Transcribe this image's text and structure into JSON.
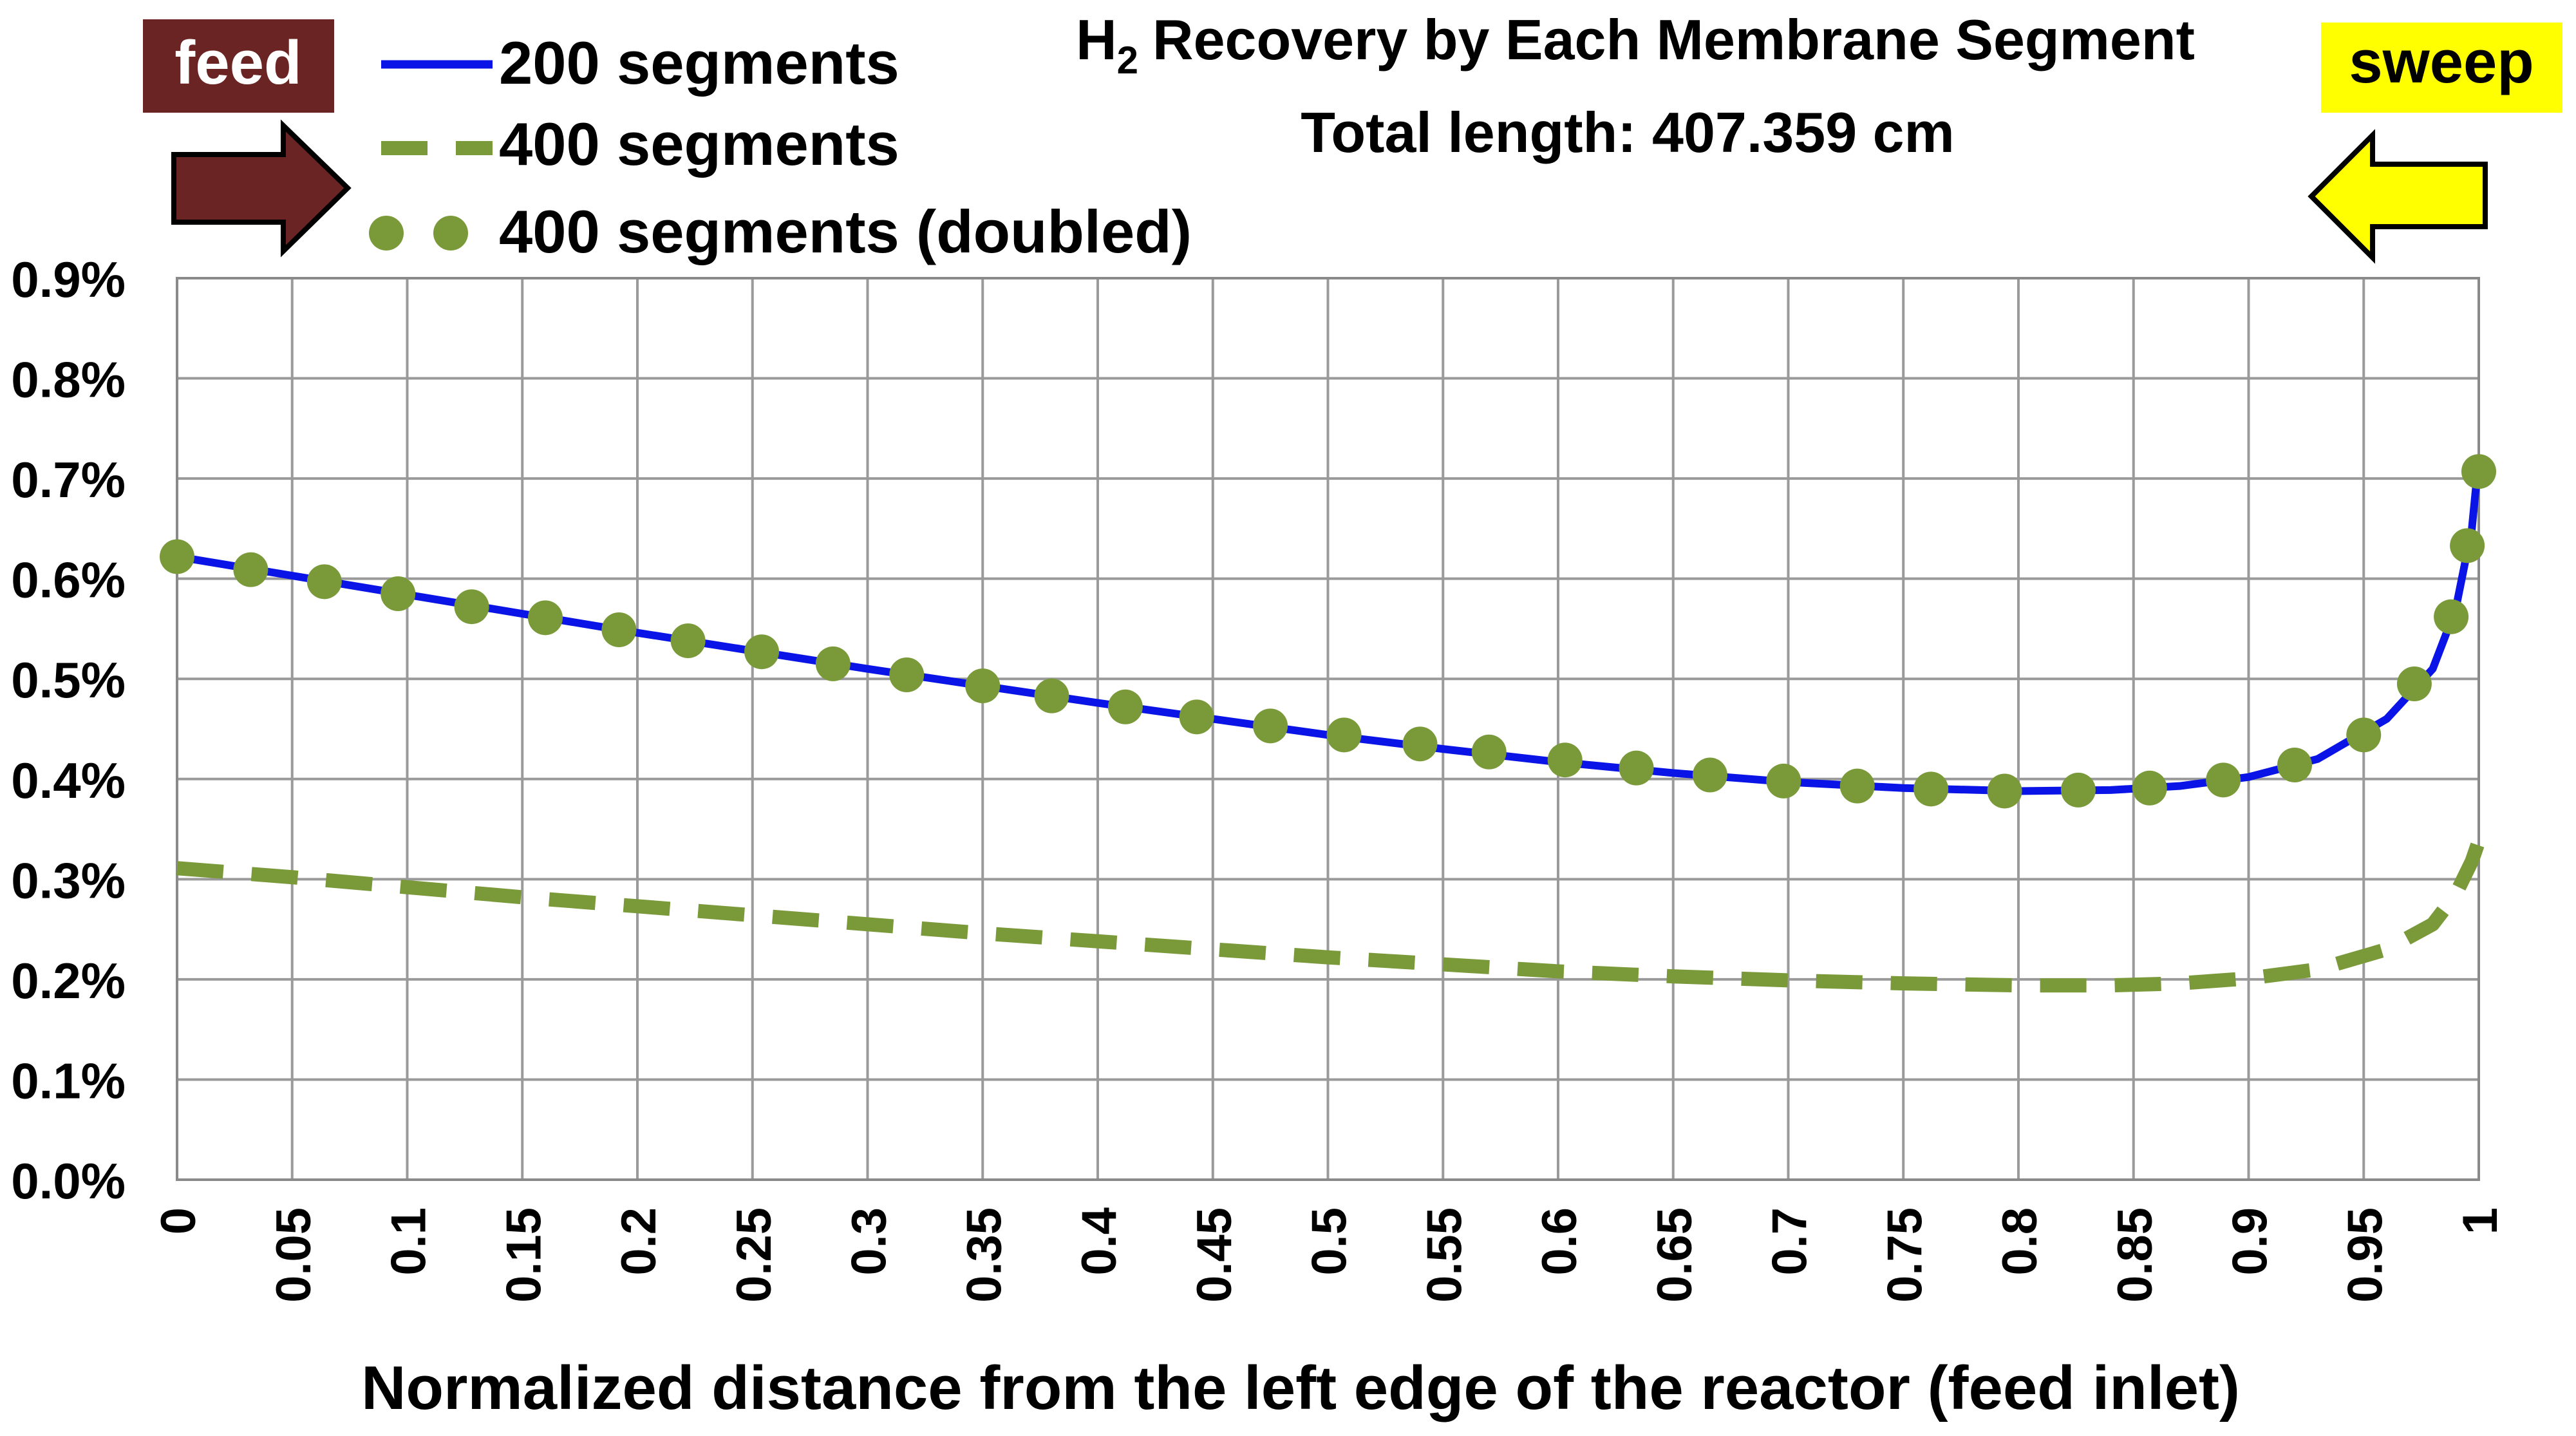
{
  "chart_data": {
    "type": "line",
    "title": "Recovery by Each Membrane Segment",
    "title_prefix": "H",
    "title_subscript": "2",
    "subtitle": "Total length: 407.359 cm",
    "xlabel": "Normalized distance from the left edge of the reactor (feed inlet)",
    "ylabel": "",
    "xlim": [
      0,
      1
    ],
    "ylim": [
      0,
      0.009
    ],
    "x_ticks": [
      "0",
      "0.05",
      "0.1",
      "0.15",
      "0.2",
      "0.25",
      "0.3",
      "0.35",
      "0.4",
      "0.45",
      "0.5",
      "0.55",
      "0.6",
      "0.65",
      "0.7",
      "0.75",
      "0.8",
      "0.85",
      "0.9",
      "0.95",
      "1"
    ],
    "y_ticks": [
      "0.0%",
      "0.1%",
      "0.2%",
      "0.3%",
      "0.4%",
      "0.5%",
      "0.6%",
      "0.7%",
      "0.8%",
      "0.9%"
    ],
    "grid": true,
    "legend_position": "top-left",
    "series": [
      {
        "name": "200 segments",
        "style": "solid",
        "color": "#0a14e6",
        "x": [
          0,
          0.05,
          0.1,
          0.15,
          0.2,
          0.25,
          0.3,
          0.35,
          0.4,
          0.45,
          0.5,
          0.55,
          0.6,
          0.65,
          0.7,
          0.75,
          0.8,
          0.84,
          0.87,
          0.9,
          0.93,
          0.96,
          0.98,
          0.99,
          0.997,
          1.0
        ],
        "y": [
          0.00622,
          0.00603,
          0.00584,
          0.00565,
          0.00546,
          0.00528,
          0.0051,
          0.00493,
          0.00476,
          0.0046,
          0.00444,
          0.0043,
          0.00417,
          0.00406,
          0.00397,
          0.00391,
          0.00388,
          0.00389,
          0.00393,
          0.00402,
          0.0042,
          0.0046,
          0.0051,
          0.0057,
          0.0065,
          0.0072
        ]
      },
      {
        "name": "400 segments",
        "style": "dashed",
        "color": "#7a9a3a",
        "x": [
          0,
          0.05,
          0.1,
          0.15,
          0.2,
          0.25,
          0.3,
          0.35,
          0.4,
          0.45,
          0.5,
          0.55,
          0.6,
          0.65,
          0.7,
          0.75,
          0.8,
          0.84,
          0.87,
          0.9,
          0.93,
          0.96,
          0.98,
          0.99,
          0.997,
          1.0
        ],
        "y": [
          0.00311,
          0.00302,
          0.00292,
          0.00282,
          0.00273,
          0.00264,
          0.00255,
          0.00246,
          0.00238,
          0.0023,
          0.00222,
          0.00215,
          0.00208,
          0.00203,
          0.00199,
          0.00196,
          0.00194,
          0.00194,
          0.00196,
          0.00201,
          0.0021,
          0.0023,
          0.00255,
          0.00285,
          0.00318,
          0.00338
        ]
      },
      {
        "name": "400 segments (doubled)",
        "style": "dots",
        "color": "#7a9a3a",
        "x": [
          0,
          0.032,
          0.064,
          0.096,
          0.128,
          0.16,
          0.192,
          0.222,
          0.254,
          0.285,
          0.317,
          0.35,
          0.38,
          0.412,
          0.443,
          0.475,
          0.507,
          0.54,
          0.57,
          0.603,
          0.634,
          0.666,
          0.698,
          0.73,
          0.762,
          0.794,
          0.826,
          0.857,
          0.889,
          0.92,
          0.95,
          0.972,
          0.988,
          0.995,
          1.0
        ],
        "y": [
          0.00622,
          0.00609,
          0.00597,
          0.00585,
          0.00572,
          0.00561,
          0.00549,
          0.00538,
          0.00527,
          0.00515,
          0.00504,
          0.00493,
          0.00483,
          0.00472,
          0.00462,
          0.00453,
          0.00444,
          0.00435,
          0.00427,
          0.00419,
          0.00411,
          0.00404,
          0.00398,
          0.00393,
          0.0039,
          0.00388,
          0.00389,
          0.00391,
          0.00399,
          0.00414,
          0.00444,
          0.00495,
          0.00562,
          0.00633,
          0.00707
        ]
      }
    ],
    "annotations": {
      "feed_label": "feed",
      "sweep_label": "sweep"
    }
  },
  "colors": {
    "feed": "#6b2424",
    "sweep": "#ffff00",
    "grid": "#9a9a9a",
    "axis": "#7f7f7f"
  }
}
